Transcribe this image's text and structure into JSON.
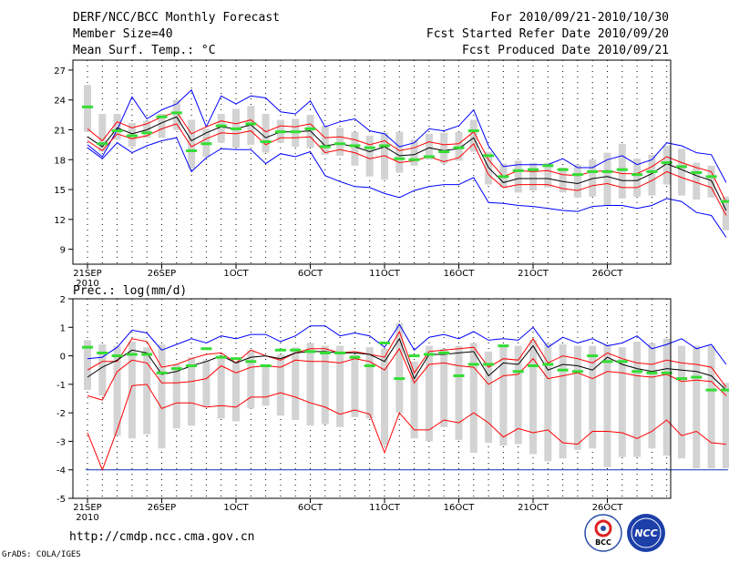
{
  "header": {
    "title": "DERF/NCC/BCC Monthly Forecast",
    "member_size": "Member Size=40",
    "variable": "Mean Surf. Temp.: °C",
    "forecast_period": "For 2010/09/21-2010/10/30",
    "refer_date": "Fcst Started Refer Date 2010/09/20",
    "produced_date": "Fcst Produced Date 2010/09/21"
  },
  "footer": {
    "url": "http://cmdp.ncc.cma.gov.cn",
    "grads": "GrADS: COLA/IGES",
    "logo_bcc": "BCC",
    "logo_ncc": "NCC"
  },
  "chart_data": [
    {
      "type": "line",
      "title": "Mean Surf. Temp.: °C",
      "x_tick_labels": [
        "21SEP",
        "26SEP",
        "1OCT",
        "6OCT",
        "11OCT",
        "16OCT",
        "21OCT",
        "26OCT"
      ],
      "x_tick_days": [
        0,
        5,
        10,
        15,
        20,
        25,
        30,
        35
      ],
      "x_year_label": "2010",
      "ylim": [
        7.5,
        28
      ],
      "y_ticks": [
        9,
        12,
        15,
        18,
        21,
        24,
        27
      ],
      "y_tick_labels": [
        "9",
        "12",
        "15",
        "18",
        "21",
        "24",
        "27"
      ],
      "series": [
        {
          "name": "max",
          "color": "#0000ff",
          "values": [
            19.5,
            18.3,
            21,
            24.3,
            22.1,
            23,
            23.6,
            25,
            21.3,
            24.4,
            23.6,
            24.4,
            24.2,
            22.8,
            22.6,
            23.9,
            21.3,
            21.8,
            22.1,
            20.9,
            20.6,
            19.3,
            19.7,
            21.1,
            20.9,
            21.4,
            23,
            19.4,
            17.3,
            17.5,
            17.5,
            17.5,
            18.1,
            17.2,
            17.2,
            18,
            18.4,
            17.5,
            18,
            19.7,
            19.4,
            18.7,
            18.5,
            15.7
          ]
        },
        {
          "name": "upper",
          "color": "#ff0000",
          "values": [
            21.1,
            19.9,
            21.8,
            21.2,
            21.6,
            22.3,
            22.8,
            20.6,
            21.3,
            21.9,
            21.6,
            22,
            20.8,
            21.4,
            21.3,
            21.6,
            20.2,
            20.3,
            20,
            19.5,
            19.9,
            18.9,
            19.2,
            19.8,
            19.5,
            19.6,
            20.8,
            18,
            16.3,
            16.9,
            16.8,
            16.9,
            16.5,
            16.4,
            16.8,
            16.9,
            16.6,
            16.6,
            17.3,
            18.3,
            17.7,
            17.2,
            16.8,
            13.7
          ]
        },
        {
          "name": "mean",
          "color": "#000000",
          "values": [
            20.3,
            19.3,
            21.2,
            20.6,
            21,
            21.7,
            22.3,
            19.9,
            20.7,
            21.3,
            21.1,
            21.5,
            20.2,
            20.8,
            20.8,
            20.9,
            19.4,
            19.6,
            19.3,
            18.8,
            19.3,
            18.4,
            18.5,
            19.2,
            18.9,
            19.1,
            20.2,
            17.2,
            15.7,
            16.1,
            16.1,
            16.1,
            15.8,
            15.6,
            16.1,
            16.3,
            15.9,
            15.9,
            16.6,
            17.6,
            17,
            16.4,
            15.9,
            12.9
          ]
        },
        {
          "name": "lower",
          "color": "#ff0000",
          "values": [
            19.9,
            18.9,
            20.6,
            20.1,
            20.4,
            21.1,
            21.6,
            19.3,
            20.1,
            20.7,
            20.6,
            20.9,
            19.5,
            20.2,
            20.2,
            20.3,
            18.7,
            19,
            18.7,
            18.1,
            18.4,
            17.7,
            17.9,
            18.3,
            17.8,
            18.2,
            19.6,
            16.5,
            15.2,
            15.5,
            15.5,
            15.5,
            15.1,
            14.9,
            15.4,
            15.6,
            15.2,
            15.2,
            15.9,
            16.8,
            16.2,
            15.7,
            15.2,
            12.4
          ]
        },
        {
          "name": "min",
          "color": "#0000ff",
          "values": [
            19.2,
            18.1,
            19.7,
            18.7,
            19.4,
            19.9,
            20.2,
            16.8,
            18.2,
            19.1,
            19,
            19,
            17.6,
            18.6,
            18.3,
            18.8,
            16.4,
            15.8,
            15.3,
            15.2,
            14.6,
            14.2,
            14.9,
            15.3,
            15.5,
            15.5,
            16.2,
            13.7,
            13.6,
            13.4,
            13.3,
            13.1,
            12.9,
            12.8,
            13.3,
            13.4,
            13.4,
            13.1,
            13.4,
            14.1,
            13.8,
            12.7,
            12.4,
            10.2
          ]
        }
      ],
      "box_high": [
        25.5,
        22.6,
        22.6,
        21.7,
        21.9,
        22.6,
        24,
        22,
        21.1,
        22.6,
        23.1,
        23.4,
        22.6,
        22,
        22.1,
        22.5,
        21.4,
        21.2,
        20.8,
        20.4,
        20.7,
        20.8,
        20,
        20.6,
        20.7,
        20.8,
        22,
        18.8,
        17.6,
        17.9,
        17.7,
        17.7,
        17.2,
        17.5,
        18,
        18.7,
        19.6,
        18.1,
        18.5,
        19.4,
        19.1,
        17.7,
        17.4,
        14.3
      ],
      "box_low": [
        20.8,
        18.8,
        20,
        19.3,
        20.2,
        20.2,
        21,
        17.1,
        18.3,
        19.7,
        19.2,
        19.5,
        18.7,
        19.7,
        19.3,
        19.2,
        18.5,
        18.4,
        17.4,
        16.3,
        16,
        16.7,
        17.4,
        18,
        17.6,
        17.9,
        18.8,
        15.5,
        15.2,
        14.7,
        14.9,
        15.2,
        14.7,
        14.2,
        14.3,
        13.4,
        14.1,
        14.3,
        14.4,
        15.5,
        14.4,
        14,
        14.2,
        10.9
      ],
      "green_marks": [
        23.3,
        19.6,
        20.9,
        20.4,
        20.7,
        22.3,
        22.7,
        18.9,
        19.6,
        21.4,
        21.1,
        21.6,
        19.8,
        20.8,
        20.8,
        21.1,
        19.3,
        19.6,
        19.4,
        19.2,
        19.4,
        18.1,
        18,
        18.3,
        18.8,
        19.2,
        20.9,
        18.4,
        16.3,
        16.9,
        17,
        17.4,
        17,
        16.5,
        16.8,
        16.8,
        17,
        16.5,
        16.8,
        17.7,
        17.3,
        16.7,
        16.3,
        13.8
      ]
    },
    {
      "type": "line",
      "title": "Prec.: log(mm/d)",
      "x_tick_labels": [
        "21SEP",
        "26SEP",
        "1OCT",
        "6OCT",
        "11OCT",
        "16OCT",
        "21OCT",
        "26OCT"
      ],
      "x_tick_days": [
        0,
        5,
        10,
        15,
        20,
        25,
        30,
        35
      ],
      "x_year_label": "2010",
      "ylim": [
        -5,
        2
      ],
      "y_ticks": [
        -5,
        -4,
        -3,
        -2,
        -1,
        0,
        1,
        2
      ],
      "y_tick_labels": [
        "-5",
        "-4",
        "-3",
        "-2",
        "-1",
        "0",
        "1",
        "2"
      ],
      "series": [
        {
          "name": "max",
          "color": "#0000ff",
          "values": [
            -0.1,
            -0.05,
            0.3,
            0.9,
            0.8,
            0.2,
            0.4,
            0.6,
            0.45,
            0.7,
            0.6,
            0.75,
            0.75,
            0.5,
            0.7,
            1.05,
            1.05,
            0.7,
            0.8,
            0.7,
            0.3,
            1.1,
            0.2,
            0.65,
            0.75,
            0.6,
            0.85,
            0.55,
            0.6,
            0.55,
            1.0,
            0.3,
            0.65,
            0.45,
            0.6,
            0.35,
            0.45,
            0.7,
            0.25,
            0.4,
            0.6,
            0.25,
            0.4,
            -0.3
          ]
        },
        {
          "name": "upper",
          "color": "#ff0000",
          "values": [
            -0.5,
            -0.2,
            -0.2,
            0.6,
            0.5,
            -0.4,
            -0.3,
            -0.1,
            0.05,
            0.1,
            -0.25,
            0.2,
            0,
            -0.15,
            0.1,
            0.25,
            0.25,
            0.1,
            0.15,
            0.05,
            -0.05,
            0.85,
            -0.6,
            0.15,
            0.2,
            0.25,
            0.3,
            -0.4,
            -0.1,
            -0.15,
            0.6,
            -0.25,
            0,
            -0.1,
            -0.25,
            0.1,
            -0.1,
            -0.25,
            -0.3,
            -0.15,
            -0.25,
            -0.3,
            -0.4,
            -1.1
          ]
        },
        {
          "name": "mean",
          "color": "#000000",
          "values": [
            -0.75,
            -0.4,
            -0.15,
            0.2,
            0.1,
            -0.65,
            -0.55,
            -0.35,
            -0.2,
            0,
            -0.25,
            -0.05,
            0,
            -0.1,
            0.1,
            0.15,
            0.15,
            0.1,
            0.1,
            0.05,
            -0.2,
            0.6,
            -0.8,
            0.05,
            0.05,
            0.1,
            0.15,
            -0.7,
            -0.25,
            -0.3,
            0.35,
            -0.5,
            -0.3,
            -0.35,
            -0.5,
            -0.05,
            -0.3,
            -0.45,
            -0.55,
            -0.45,
            -0.5,
            -0.55,
            -0.7,
            -1.2
          ]
        },
        {
          "name": "lower",
          "color": "#ff0000",
          "values": [
            -1.4,
            -1.55,
            -0.55,
            -0.15,
            -0.25,
            -0.95,
            -0.95,
            -0.9,
            -0.8,
            -0.35,
            -0.6,
            -0.4,
            -0.35,
            -0.4,
            -0.15,
            -0.2,
            -0.2,
            -0.25,
            -0.1,
            -0.2,
            -0.5,
            0.25,
            -0.95,
            -0.3,
            -0.25,
            -0.35,
            -0.4,
            -1.0,
            -0.7,
            -0.65,
            -0.1,
            -0.8,
            -0.7,
            -0.6,
            -0.8,
            -0.55,
            -0.6,
            -0.7,
            -0.75,
            -0.65,
            -0.9,
            -0.85,
            -0.9,
            -1.4
          ]
        },
        {
          "name": "min",
          "color": "#ff0000",
          "values": [
            -2.7,
            -4.0,
            -2.6,
            -1.05,
            -1.0,
            -1.85,
            -1.65,
            -1.65,
            -1.8,
            -1.75,
            -1.8,
            -1.45,
            -1.45,
            -1.3,
            -1.45,
            -1.65,
            -1.8,
            -2.05,
            -1.9,
            -2.05,
            -3.4,
            -2.0,
            -2.6,
            -2.6,
            -2.25,
            -2.35,
            -2.0,
            -2.35,
            -2.85,
            -2.55,
            -2.7,
            -2.6,
            -3.05,
            -3.1,
            -2.65,
            -2.65,
            -2.7,
            -2.9,
            -2.65,
            -2.25,
            -2.8,
            -2.65,
            -3.05,
            -3.1
          ]
        }
      ],
      "floor_line": -4,
      "box_high": [
        0.55,
        0.4,
        0.35,
        0.5,
        0.3,
        0.4,
        -0.3,
        -0.05,
        -0.15,
        -0.05,
        -0.2,
        0.2,
        -0.4,
        0.05,
        0.3,
        0.45,
        0.35,
        0.35,
        0.05,
        0.3,
        0.25,
        1.15,
        -0.2,
        0.35,
        0.25,
        0.35,
        0.45,
        0.15,
        0.35,
        0.35,
        0.55,
        0.45,
        0.4,
        0.35,
        0.35,
        0.4,
        0.3,
        0.5,
        0.45,
        0.6,
        0.35,
        0.35,
        0.35,
        -0.95
      ],
      "box_low": [
        -1.2,
        -1.4,
        -2.8,
        -2.9,
        -2.75,
        -3.25,
        -2.55,
        -2.45,
        -1.8,
        -2.2,
        -2.3,
        -1.85,
        -1.75,
        -2.1,
        -2.25,
        -2.45,
        -2.4,
        -2.5,
        -2.15,
        -2.2,
        -3.15,
        -2.0,
        -2.9,
        -3.0,
        -2.5,
        -2.95,
        -3.4,
        -3.05,
        -3.15,
        -3.1,
        -3.45,
        -3.7,
        -3.6,
        -3.3,
        -3.25,
        -3.9,
        -3.55,
        -3.55,
        -3.25,
        -3.5,
        -3.6,
        -3.95,
        -3.95,
        -3.95
      ],
      "green_marks": [
        0.3,
        0.1,
        0,
        0.05,
        0.05,
        -0.6,
        -0.45,
        -0.35,
        0.25,
        -0.05,
        -0.1,
        -0.2,
        -0.35,
        0.2,
        0.2,
        0.15,
        0.1,
        0.1,
        -0.05,
        -0.35,
        0.45,
        -0.8,
        0,
        0.05,
        0.1,
        -0.7,
        -0.3,
        -0.3,
        0.35,
        -0.55,
        -0.35,
        -0.3,
        -0.5,
        -0.55,
        0,
        -0.2,
        -0.2,
        -0.55,
        -0.6,
        -0.6,
        -0.8,
        -0.75,
        -1.2,
        -1.2
      ]
    }
  ]
}
